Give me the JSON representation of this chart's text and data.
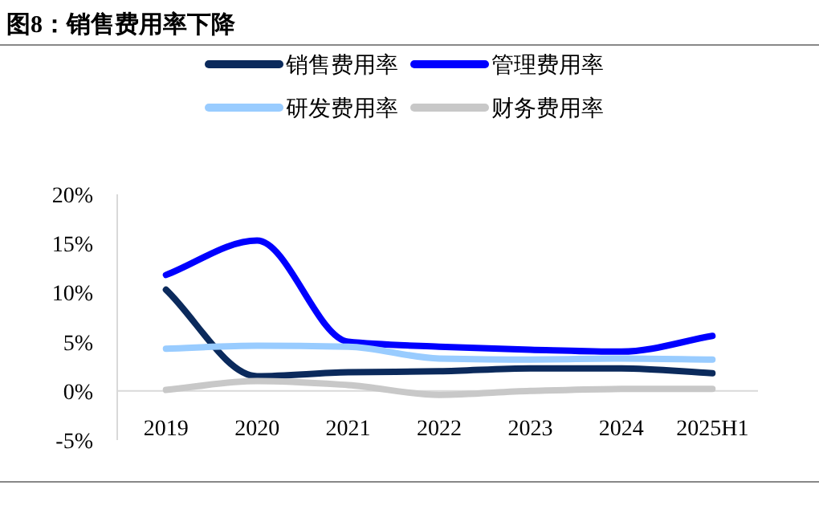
{
  "chart_data": {
    "type": "line",
    "title": "图8：销售费用率下降",
    "categories": [
      "2019",
      "2020",
      "2021",
      "2022",
      "2023",
      "2024",
      "2025H1"
    ],
    "series": [
      {
        "name": "销售费用率",
        "color": "#0b2a5c",
        "values": [
          10.3,
          1.5,
          1.9,
          2.0,
          2.3,
          2.3,
          1.8
        ]
      },
      {
        "name": "管理费用率",
        "color": "#0000ff",
        "values": [
          11.8,
          15.3,
          5.0,
          4.5,
          4.2,
          4.0,
          5.6
        ]
      },
      {
        "name": "研发费用率",
        "color": "#99ccff",
        "values": [
          4.3,
          4.6,
          4.5,
          3.3,
          3.2,
          3.3,
          3.2
        ]
      },
      {
        "name": "财务费用率",
        "color": "#c8c8c8",
        "values": [
          0.1,
          1.0,
          0.6,
          -0.4,
          0.0,
          0.2,
          0.2
        ]
      }
    ],
    "ylim": [
      -5,
      20
    ],
    "yticks": [
      {
        "value": -5,
        "label": "-5%"
      },
      {
        "value": 0,
        "label": "0%"
      },
      {
        "value": 5,
        "label": "5%"
      },
      {
        "value": 10,
        "label": "10%"
      },
      {
        "value": 15,
        "label": "15%"
      },
      {
        "value": 20,
        "label": "20%"
      }
    ],
    "legend": "top",
    "grid": false,
    "marker": "none",
    "line_style": "solid"
  }
}
